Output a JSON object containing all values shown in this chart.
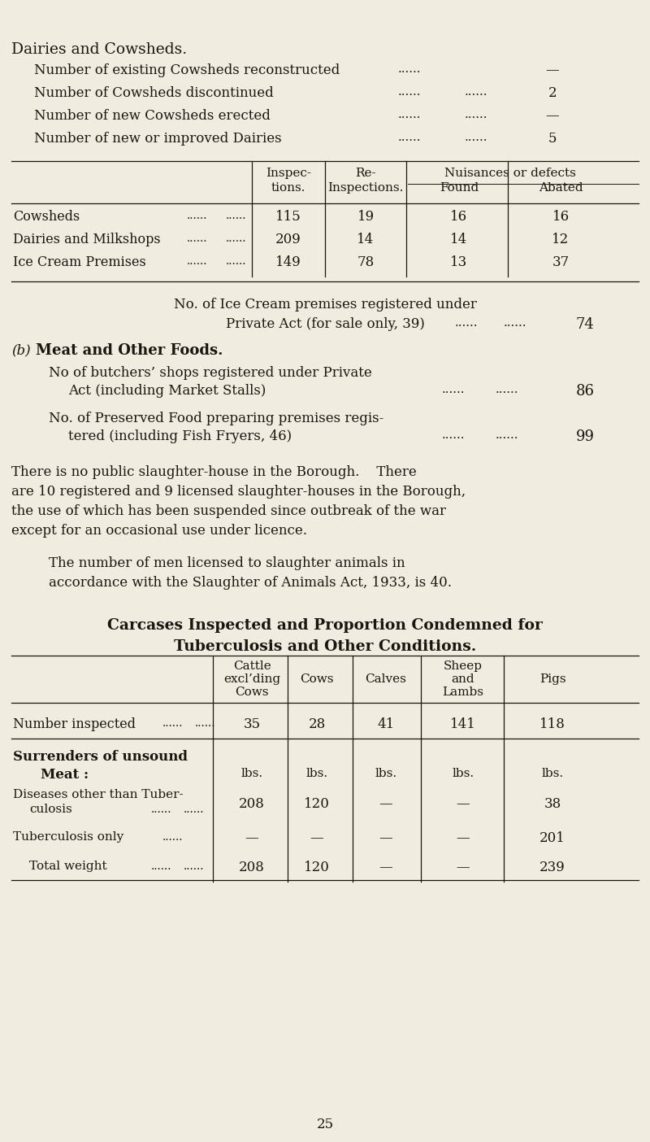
{
  "bg_color": "#f0ece0",
  "text_color": "#1a1510",
  "page_number": "25",
  "title_caps": "Dairies and Cowsheds.",
  "section1_items": [
    {
      "label": "Number of existing Cowsheds reconstructed",
      "dots1": "......",
      "dots2": "",
      "value": "—"
    },
    {
      "label": "Number of Cowsheds discontinued",
      "dots1": "......",
      "dots2": "......",
      "value": "2"
    },
    {
      "label": "Number of new Cowsheds erected",
      "dots1": "......",
      "dots2": "......",
      "value": "—"
    },
    {
      "label": "Number of new or improved Dairies",
      "dots1": "......",
      "dots2": "......",
      "value": "5"
    }
  ],
  "table1_rows": [
    {
      "label": "Cowsheds",
      "dots1": "......",
      "dots2": "......",
      "v1": "115",
      "v2": "19",
      "v3": "16",
      "v4": "16"
    },
    {
      "label": "Dairies and Milkshops",
      "dots1": "......",
      "dots2": "......",
      "v1": "209",
      "v2": "14",
      "v3": "14",
      "v4": "12"
    },
    {
      "label": "Ice Cream Premises",
      "dots1": "......",
      "dots2": "......",
      "v1": "149",
      "v2": "78",
      "v3": "13",
      "v4": "37"
    }
  ],
  "ice_cream_line1": "No. of Ice Cream premises registered under",
  "ice_cream_line2": "Private Act (for sale only, 39)",
  "ice_cream_dots1": "......",
  "ice_cream_dots2": "......",
  "ice_cream_value": "74",
  "section_b_label": "(b)",
  "section_b_title": "Meat and Other Foods.",
  "meat_items": [
    {
      "line1": "No of butchers’ shops registered under Private",
      "line2": "Act (including Market Stalls)",
      "dots1": "......",
      "dots2": "......",
      "value": "86"
    },
    {
      "line1": "No. of Preserved Food preparing premises regis-",
      "line2": "tered (including Fish Fryers, 46)",
      "dots1": "......",
      "dots2": "......",
      "value": "99"
    }
  ],
  "para1_lines": [
    "There is no public slaughter-house in the Borough.    There",
    "are 10 registered and 9 licensed slaughter-houses in the Borough,",
    "the use of which has been suspended since outbreak of the war",
    "except for an occasional use under licence."
  ],
  "para2_lines": [
    "The number of men licensed to slaughter animals in",
    "accordance with the Slaughter of Animals Act, 1933, is 40."
  ],
  "carcases_title1": "Carcases Inspected and Proportion Condemned for",
  "carcases_title2": "Tuberculosis and Other Conditions.",
  "table2_col_headers": [
    "Cattle\nexcl’ding\nCows",
    "Cows",
    "Calves",
    "Sheep\nand\nLambs",
    "Pigs"
  ],
  "table2_row1_label": "Number inspected",
  "table2_row1_dots1": "......",
  "table2_row1_dots2": "......",
  "table2_row1_values": [
    "35",
    "28",
    "41",
    "141",
    "118"
  ],
  "table2_units": [
    "lbs.",
    "lbs.",
    "lbs.",
    "lbs.",
    "lbs."
  ],
  "table2_surr_line1": "Surrenders of unsound",
  "table2_surr_line2": "Meat :",
  "table2_row2_line1": "Diseases other than Tuber-",
  "table2_row2_line2": "culosis",
  "table2_row2_dots1": "......",
  "table2_row2_dots2": "......",
  "table2_row2_values": [
    "208",
    "120",
    "—",
    "—",
    "38"
  ],
  "table2_row3_label": "Tuberculosis only",
  "table2_row3_dots": "......",
  "table2_row3_values": [
    "—",
    "—",
    "—",
    "—",
    "201"
  ],
  "table2_row4_label": "Total weight",
  "table2_row4_dots1": "......",
  "table2_row4_dots2": "......",
  "table2_row4_values": [
    "208",
    "120",
    "—",
    "—",
    "239"
  ]
}
